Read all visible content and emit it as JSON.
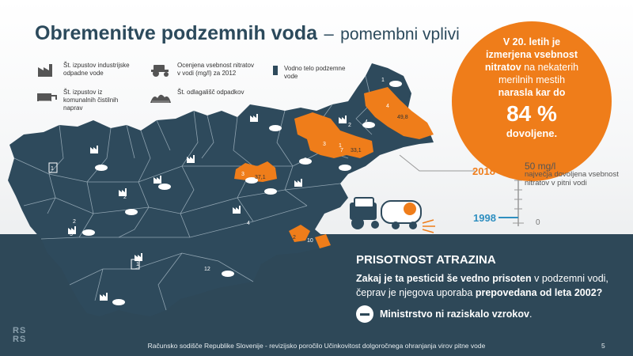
{
  "title": {
    "main": "Obremenitve podzemnih voda",
    "separator": "–",
    "subtitle": "pomembni vplivi"
  },
  "legend": {
    "industrial": "Št. izpustov industrijske odpadne vode",
    "nitrate": "Ocenjena vsebnost nitratov v vodi (mg/l) za 2012",
    "water_body": "Vodno telo podzemne vode",
    "municipal": "Št. izpustov iz komunalnih čistilnih naprav",
    "landfill": "Št. odlagališč odpadkov"
  },
  "callout": {
    "l1": "V 20. letih je",
    "l2": "izmerjena vsebnost",
    "l3a": "nitratov",
    "l3b": "na nekaterih",
    "l4": "merilnih mestih",
    "l5": "narasla kar do",
    "big": "84 %",
    "l6": "dovoljene."
  },
  "scale": {
    "year_top": "2018",
    "year_bottom": "1998",
    "limit_value": "50 mg/l",
    "limit_desc": "največja dovoljena vsebnost nitratov v pitni vodi",
    "zero": "0"
  },
  "atrazine": {
    "title": "PRISOTNOST ATRAZINA",
    "q_bold": "Zakaj je ta pesticid še vedno prisoten",
    "q_mid": "v podzemni vodi, čeprav je njegova uporaba",
    "q_bold2": "prepovedana od leta 2002?",
    "answer": "Ministrstvo ni raziskalo vzrokov",
    "answer_end": "."
  },
  "map_labels": {
    "ne1": "1",
    "ne2": "4",
    "ne3": "49,8",
    "ne4": "4",
    "ne5": "2",
    "ne6": "1",
    "mid1": "3",
    "mid2": "7",
    "mid3": "33,1",
    "mid4": "3",
    "mid5": "1",
    "c1": "3",
    "c2": "37,1",
    "w1": "1",
    "w2": "1",
    "w3": "2",
    "w4": "3",
    "w5": "1",
    "s1": "4",
    "s2": "5",
    "s3": "12",
    "s4": "6",
    "s5": "2",
    "s6": "1",
    "se1": "2",
    "se2": "10",
    "e1": "4"
  },
  "colors": {
    "map": "#2e4a5c",
    "orange": "#ef7d1a",
    "band": "#2e4858"
  },
  "logo": {
    "l1": "RS",
    "l2": "RS"
  },
  "footer": {
    "text": "Računsko sodišče Republike Slovenije - revizijsko poročilo Učinkovitost dolgoročnega ohranjanja virov pitne vode",
    "page": "5"
  }
}
